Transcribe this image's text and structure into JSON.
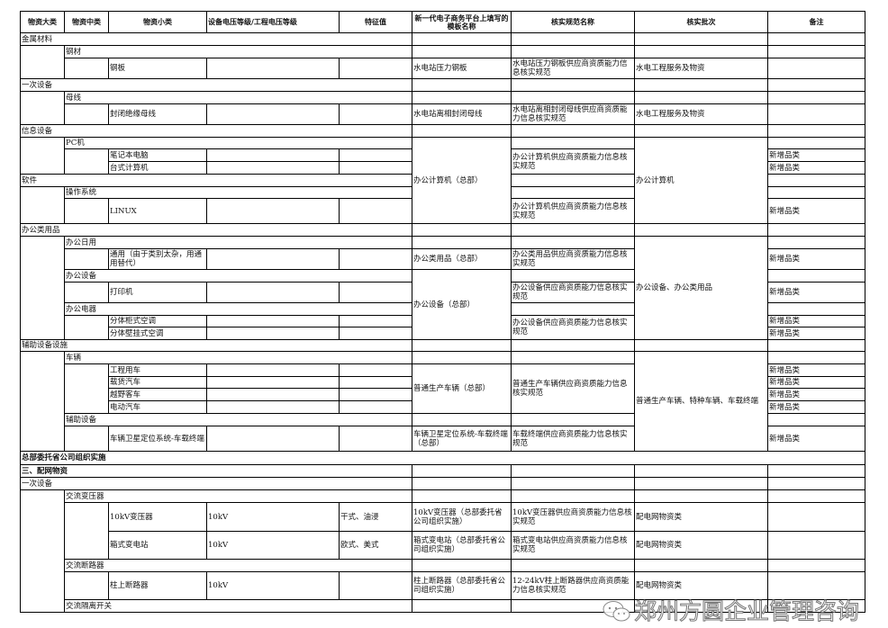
{
  "headers": [
    "物资大类",
    "物资中类",
    "物资小类",
    "设备电压等级/工程电压等级",
    "特征值",
    "新一代电子商务平台上填写的模板名称",
    "核实规范名称",
    "核实批次",
    "备注"
  ],
  "rows": [
    {},
    {
      "cat": "金属材料"
    },
    {
      "mid": "钢材"
    },
    {
      "sub": "钢板",
      "template": "水电站压力钢板",
      "spec": "水电站压力钢板供应商资质能力信息核实规范",
      "batch": "水电工程服务及物资"
    },
    {
      "cat": "一次设备"
    },
    {
      "mid": "母线"
    },
    {
      "sub": "封闭绝缘母线",
      "template": "水电站离相封闭母线",
      "spec": "水电站离相封闭母线供应商资质能力信息核实规范",
      "batch": "水电工程服务及物资"
    },
    {
      "cat": "信息设备"
    },
    {
      "mid": "PC机",
      "template": "办公计算机（总部）",
      "batch": "办公计算机"
    },
    {
      "sub": "笔记本电脑",
      "spec": "办公计算机供应商资质能力信息核实规范",
      "note": "新增品类"
    },
    {
      "sub": "台式计算机",
      "note": "新增品类"
    },
    {
      "cat": "软件"
    },
    {
      "mid": "操作系统"
    },
    {
      "sub": "LINUX",
      "spec": "办公计算机供应商资质能力信息核实规范",
      "note": "新增品类"
    },
    {
      "cat": "办公类用品"
    },
    {
      "mid": "办公日用",
      "batch": "办公设备、办公类用品"
    },
    {
      "sub": "通用（由于类别太杂，用通用替代）",
      "template": "办公类用品（总部）",
      "spec": "办公类用品供应商资质能力信息核实规范",
      "note": "新增品类"
    },
    {
      "mid": "办公设备",
      "template": "办公设备（总部）"
    },
    {
      "sub": "打印机",
      "spec": "办公设备供应商资质能力信息核实规范",
      "note": "新增品类"
    },
    {
      "mid": "办公电器"
    },
    {
      "sub": "分体柜式空调",
      "spec": "办公设备供应商资质能力信息核实规范",
      "note": "新增品类"
    },
    {
      "sub": "分体壁挂式空调",
      "note": "新增品类"
    },
    {
      "cat": "辅助设备设施"
    },
    {
      "mid": "车辆",
      "batch": "普通生产车辆、特种车辆、车载终端"
    },
    {
      "sub": "工程用车",
      "template": "普通生产车辆（总部）",
      "spec": "普通生产车辆供应商资质能力信息核实规范",
      "note": "新增品类"
    },
    {
      "sub": "载货汽车",
      "note": "新增品类"
    },
    {
      "sub": "越野客车",
      "note": "新增品类"
    },
    {
      "sub": "电动汽车",
      "note": "新增品类"
    },
    {
      "mid": "辅助设备"
    },
    {
      "sub": "车辆卫星定位系统-车载终端",
      "template": "车辆卫星定位系统-车载终端（总部）",
      "spec": "车载终端供应商资质能力信息核实规范",
      "note": "新增品类"
    },
    {
      "cat": "总部委托省公司组织实施"
    },
    {
      "cat": "三、配网物资"
    },
    {
      "cat": "一次设备"
    },
    {
      "mid": "交流变压器"
    },
    {
      "sub": "10kV变压器",
      "voltage": "10kV",
      "feature": "干式、油浸",
      "template": "10kV变压器（总部委托省公司组织实施）",
      "spec": "10kV变压器供应商资质能力信息核实规范",
      "batch": "配电网物资类"
    },
    {
      "sub": "箱式变电站",
      "voltage": "10kV",
      "feature": "欧式、美式",
      "template": "箱式变电站（总部委托省公司组织实施）",
      "spec": "箱式变电站供应商资质能力信息核实规范",
      "batch": "配电网物资类"
    },
    {
      "mid": "交流断路器"
    },
    {
      "sub": "柱上断路器",
      "voltage": "10kV",
      "template": "柱上断路器（总部委托省公司组织实施）",
      "spec": "12-24kV柱上断路器供应商资质能力信息核实规范",
      "batch": "配电网物资类"
    },
    {
      "mid": "交流隔离开关"
    }
  ],
  "watermark": {
    "icon": "wechat-icon",
    "text": "郑州方圆企业管理咨询"
  }
}
